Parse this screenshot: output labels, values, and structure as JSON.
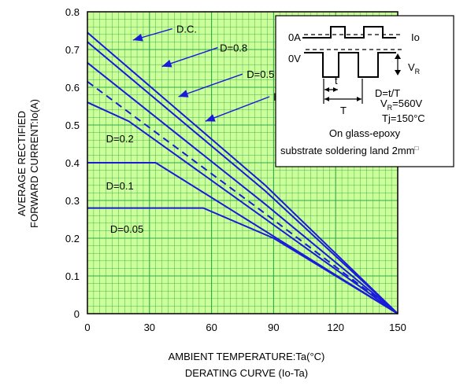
{
  "chart_data": {
    "type": "line",
    "title": "",
    "xlabel": "AMBIENT TEMPERATURE:Ta(°C)",
    "ylabel_lines": [
      "AVERAGE RECTIFIED",
      "FORWARD CURRENT:Io(A)"
    ],
    "caption": "DERATING  CURVE (Io-Ta)",
    "xlim": [
      0,
      150
    ],
    "ylim": [
      0,
      0.8
    ],
    "xticks": [
      0,
      30,
      60,
      90,
      120,
      150
    ],
    "xtick_labels": [
      "0",
      "30",
      "60",
      "90",
      "120",
      "150"
    ],
    "yticks": [
      0,
      0.1,
      0.2,
      0.3,
      0.4,
      0.5,
      0.6,
      0.7,
      0.8
    ],
    "ytick_labels": [
      "0",
      "0.1",
      "0.2",
      "0.3",
      "0.4",
      "0.5",
      "0.6",
      "0.7",
      "0.8"
    ],
    "grid": true,
    "colors": {
      "background": "#ccff99",
      "grid": "#2ea84a",
      "series": "#1a1adb",
      "arrow": "#1a1adb"
    },
    "series": [
      {
        "name": "D.C.",
        "style": "solid",
        "x": [
          0,
          86,
          150
        ],
        "y": [
          0.745,
          0.34,
          0.0
        ]
      },
      {
        "name": "D=0.8",
        "style": "solid",
        "x": [
          0,
          86,
          150
        ],
        "y": [
          0.72,
          0.325,
          0.0
        ]
      },
      {
        "name": "D=0.5",
        "style": "solid",
        "x": [
          0,
          86,
          150
        ],
        "y": [
          0.665,
          0.29,
          0.0
        ]
      },
      {
        "name": "half sin wave",
        "style": "dashed",
        "x": [
          0,
          86,
          150
        ],
        "y": [
          0.615,
          0.265,
          0.0
        ]
      },
      {
        "name": "D=0.2",
        "style": "solid",
        "x": [
          0,
          20,
          150
        ],
        "y": [
          0.56,
          0.51,
          0.0
        ]
      },
      {
        "name": "D=0.1",
        "style": "solid",
        "x": [
          0,
          33,
          150
        ],
        "y": [
          0.4,
          0.4,
          0.0
        ]
      },
      {
        "name": "D=0.05",
        "style": "solid",
        "x": [
          0,
          56,
          90,
          150
        ],
        "y": [
          0.28,
          0.28,
          0.2,
          0.0
        ]
      }
    ],
    "annotations": [
      {
        "text": "D.C.",
        "tx": 43,
        "ty": 0.755,
        "ax1": 41,
        "ay1": 0.755,
        "ax2": 22,
        "ay2": 0.725
      },
      {
        "text": "D=0.8",
        "tx": 64,
        "ty": 0.705,
        "ax1": 63,
        "ay1": 0.705,
        "ax2": 36,
        "ay2": 0.655
      },
      {
        "text": "D=0.5",
        "tx": 77,
        "ty": 0.635,
        "ax1": 75,
        "ay1": 0.635,
        "ax2": 44,
        "ay2": 0.575
      },
      {
        "text": "half sin wave",
        "tx": 90,
        "ty": 0.575,
        "ax1": 88,
        "ay1": 0.575,
        "ax2": 57,
        "ay2": 0.51
      },
      {
        "text": "D=0.2",
        "tx": 9,
        "ty": 0.465
      },
      {
        "text": "D=0.1",
        "tx": 9,
        "ty": 0.34
      },
      {
        "text": "D=0.05",
        "tx": 11,
        "ty": 0.225
      }
    ],
    "inset": {
      "label_0A": "0A",
      "label_0V": "0V",
      "label_Io": "Io",
      "label_VR_main": "V",
      "label_VR_sub": "R",
      "label_t": "t",
      "label_T": "T",
      "line_duty": "D=t/T",
      "line_vr_main": "V",
      "line_vr_sub": "R",
      "line_vr_rest": "=560V",
      "line_tj": "Tj=150°C",
      "line_glass": "On glass-epoxy",
      "line_substrate": "substrate soldering land 2mm",
      "square_symbol": "□"
    }
  }
}
